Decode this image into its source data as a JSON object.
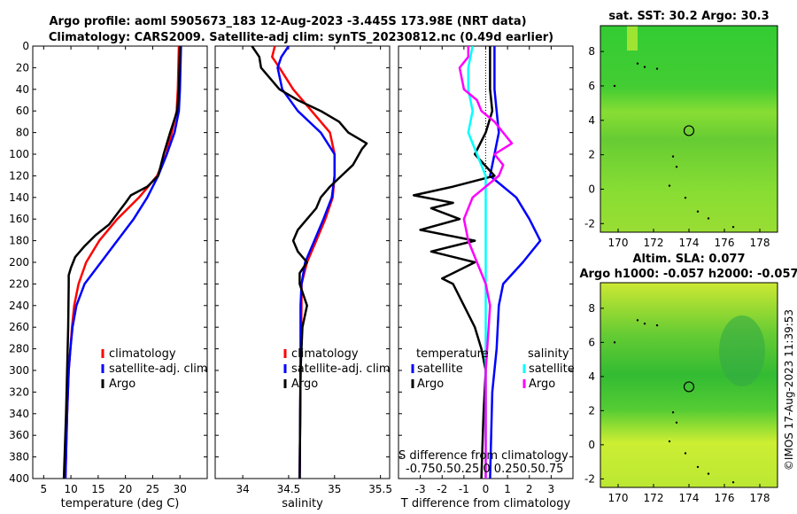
{
  "titles": {
    "line1": "Argo profile: aoml 5905673_183 12-Aug-2023 -3.445S 173.98E (NRT data)",
    "line2": "Climatology: CARS2009. Satellite-adj clim: synTS_20230812.nc (0.49d earlier)"
  },
  "footer": "©IMOS 17-Aug-2023 11:39:53",
  "colors": {
    "climatology": "#ff0000",
    "satellite": "#0000ff",
    "argo": "#000000",
    "salt_sat": "#00ffff",
    "salt_argo": "#ff00ff",
    "map_green": "#33cc33",
    "map_yellow": "#ccee33"
  },
  "depth_axis": {
    "range": [
      0,
      400
    ],
    "ticks": [
      0,
      20,
      40,
      60,
      80,
      100,
      120,
      140,
      160,
      180,
      200,
      220,
      240,
      260,
      280,
      300,
      320,
      340,
      360,
      380,
      400
    ],
    "labels": [
      "0",
      "20",
      "40",
      "60",
      "80",
      "100",
      "120",
      "140",
      "160",
      "180",
      "200",
      "220",
      "240",
      "260",
      "280",
      "300",
      "320",
      "340",
      "360",
      "380",
      "400"
    ]
  },
  "chart_data": [
    {
      "id": "temperature",
      "type": "line",
      "xlabel": "temperature (deg C)",
      "xlim": [
        3,
        35
      ],
      "xticks": [
        5,
        10,
        15,
        20,
        25,
        30
      ],
      "xtick_labels": [
        "5",
        "10",
        "15",
        "20",
        "25",
        "30"
      ],
      "legend": [
        "climatology",
        "satellite-adj. clim",
        "Argo"
      ],
      "series": [
        {
          "name": "climatology",
          "color": "#ff0000",
          "depth": [
            0,
            40,
            60,
            80,
            100,
            120,
            140,
            160,
            180,
            200,
            220,
            240,
            260,
            280,
            300,
            340,
            400
          ],
          "values": [
            29.8,
            29.6,
            29.4,
            28.5,
            27.5,
            25.8,
            22.5,
            18.5,
            15.2,
            12.8,
            11.4,
            10.6,
            10.2,
            9.9,
            9.6,
            9.3,
            9.0
          ]
        },
        {
          "name": "satellite-adj. clim",
          "color": "#0000ff",
          "depth": [
            0,
            40,
            60,
            80,
            100,
            120,
            140,
            160,
            180,
            200,
            220,
            240,
            260,
            280,
            300,
            340,
            400
          ],
          "values": [
            30.2,
            30.0,
            29.8,
            29.0,
            27.6,
            26.0,
            24.0,
            21.5,
            18.5,
            15.5,
            12.5,
            11.0,
            10.3,
            9.9,
            9.6,
            9.3,
            9.0
          ]
        },
        {
          "name": "Argo",
          "color": "#000000",
          "depth": [
            0,
            40,
            60,
            80,
            100,
            120,
            130,
            138,
            145,
            155,
            165,
            175,
            185,
            195,
            205,
            212,
            220,
            260,
            300,
            340,
            400
          ],
          "values": [
            30.0,
            29.8,
            29.5,
            28.2,
            27.0,
            26.0,
            24.0,
            21.0,
            20.0,
            18.5,
            17.0,
            14.5,
            12.5,
            10.8,
            10.0,
            9.6,
            9.6,
            9.5,
            9.3,
            9.1,
            8.7
          ]
        }
      ]
    },
    {
      "id": "salinity",
      "type": "line",
      "xlabel": "salinity",
      "xlim": [
        33.7,
        35.6
      ],
      "xticks": [
        34,
        34.5,
        35,
        35.5
      ],
      "xtick_labels": [
        "34",
        "34.5",
        "35",
        "35.5"
      ],
      "legend": [
        "climatology",
        "satellite-adj. clim",
        "Argo"
      ],
      "series": [
        {
          "name": "climatology",
          "color": "#ff0000",
          "depth": [
            0,
            10,
            20,
            40,
            60,
            80,
            100,
            120,
            140,
            160,
            180,
            200,
            220,
            240,
            300,
            400
          ],
          "values": [
            34.35,
            34.32,
            34.4,
            34.55,
            34.75,
            34.95,
            35.0,
            35.0,
            34.98,
            34.9,
            34.8,
            34.7,
            34.64,
            34.64,
            34.63,
            34.62
          ]
        },
        {
          "name": "satellite-adj. clim",
          "color": "#0000ff",
          "depth": [
            0,
            10,
            20,
            40,
            60,
            80,
            100,
            120,
            140,
            160,
            180,
            200,
            220,
            240,
            300,
            400
          ],
          "values": [
            34.5,
            34.42,
            34.38,
            34.43,
            34.6,
            34.85,
            35.0,
            35.0,
            34.97,
            34.88,
            34.78,
            34.68,
            34.64,
            34.63,
            34.63,
            34.62
          ]
        },
        {
          "name": "Argo",
          "color": "#000000",
          "depth": [
            0,
            10,
            20,
            40,
            50,
            60,
            70,
            80,
            85,
            90,
            95,
            110,
            130,
            140,
            150,
            160,
            170,
            180,
            190,
            200,
            210,
            220,
            240,
            260,
            300,
            400
          ],
          "values": [
            34.1,
            34.18,
            34.2,
            34.4,
            34.6,
            34.85,
            35.05,
            35.15,
            35.25,
            35.35,
            35.3,
            35.2,
            34.95,
            34.85,
            34.8,
            34.7,
            34.6,
            34.55,
            34.6,
            34.7,
            34.62,
            34.62,
            34.7,
            34.65,
            34.63,
            34.62
          ]
        }
      ]
    },
    {
      "id": "differences",
      "type": "line",
      "xlabel": "T difference from climatology",
      "xlim": [
        -4,
        4
      ],
      "xticks": [
        -3,
        -2,
        -1,
        0,
        1,
        2,
        3
      ],
      "xtick_labels": [
        "-3",
        "-2",
        "-1",
        "0",
        "1",
        "2",
        "3"
      ],
      "top_label": "S difference from climatology",
      "top_ticks": "-0.750.50.25 0 0.250.50.75",
      "legend_left_title": "temperature",
      "legend_right_title": "salinity",
      "legend": [
        "satellite",
        "Argo",
        "satellite",
        "Argo"
      ],
      "series": [
        {
          "name": "T satellite",
          "color": "#0000ff",
          "depth": [
            0,
            40,
            60,
            80,
            100,
            120,
            140,
            160,
            180,
            200,
            220,
            240,
            280,
            320,
            400
          ],
          "values": [
            0.4,
            0.4,
            0.5,
            0.6,
            0.4,
            0.2,
            1.4,
            2.0,
            2.5,
            1.7,
            0.8,
            0.6,
            0.5,
            0.3,
            0.2
          ]
        },
        {
          "name": "T Argo",
          "color": "#000000",
          "depth": [
            0,
            40,
            60,
            80,
            100,
            120,
            130,
            138,
            145,
            150,
            160,
            170,
            180,
            190,
            200,
            215,
            220,
            240,
            260,
            280,
            300,
            340,
            400
          ],
          "values": [
            0.2,
            0.2,
            0.3,
            0.0,
            -0.5,
            0.4,
            -1.5,
            -3.3,
            -1.5,
            -2.5,
            -1.2,
            -3.0,
            -0.5,
            -2.5,
            -0.5,
            -2.0,
            -1.5,
            -1.0,
            -0.5,
            -0.2,
            0.0,
            -0.1,
            -0.2
          ]
        },
        {
          "name": "S satellite",
          "color": "#00ffff",
          "depth": [
            0,
            20,
            40,
            60,
            80,
            100,
            120,
            140,
            160,
            180,
            200,
            240,
            300,
            400
          ],
          "values": [
            -0.15,
            -0.2,
            -0.2,
            -0.15,
            -0.2,
            -0.1,
            0.0,
            0.0,
            0.0,
            0.0,
            0.0,
            0.0,
            0.0,
            0.0
          ]
        },
        {
          "name": "S Argo",
          "color": "#ff00ff",
          "depth": [
            0,
            10,
            20,
            40,
            50,
            60,
            70,
            80,
            90,
            100,
            110,
            120,
            140,
            160,
            180,
            200,
            210,
            220,
            240,
            300,
            400
          ],
          "values": [
            -0.2,
            -0.2,
            -0.3,
            -0.25,
            -0.1,
            -0.05,
            0.1,
            0.2,
            0.3,
            0.1,
            0.2,
            0.15,
            -0.15,
            -0.25,
            -0.2,
            -0.1,
            -0.05,
            0.0,
            0.05,
            0.0,
            0.0
          ]
        }
      ]
    },
    {
      "id": "sst_map",
      "type": "heatmap",
      "title": "sat. SST: 30.2 Argo: 30.3",
      "xlim": [
        169,
        179
      ],
      "ylim": [
        -2.5,
        9.5
      ],
      "xticks": [
        170,
        172,
        174,
        176,
        178
      ],
      "xtick_labels": [
        "170",
        "172",
        "174",
        "176",
        "178"
      ],
      "yticks": [
        -2,
        0,
        2,
        4,
        6,
        8
      ],
      "ytick_labels": [
        "-2",
        "0",
        "2",
        "4",
        "6",
        "8"
      ],
      "marker": {
        "lon": 174,
        "lat": 3.4
      }
    },
    {
      "id": "sla_map",
      "type": "heatmap",
      "title": "Altim. SLA: 0.077",
      "subtitle": "Argo h1000: -0.057 h2000: -0.057",
      "xlim": [
        169,
        179
      ],
      "ylim": [
        -2.5,
        9.5
      ],
      "xticks": [
        170,
        172,
        174,
        176,
        178
      ],
      "xtick_labels": [
        "170",
        "172",
        "174",
        "176",
        "178"
      ],
      "yticks": [
        -2,
        0,
        2,
        4,
        6,
        8
      ],
      "ytick_labels": [
        "-2",
        "0",
        "2",
        "4",
        "6",
        "8"
      ],
      "marker": {
        "lon": 174,
        "lat": 3.4
      }
    }
  ]
}
